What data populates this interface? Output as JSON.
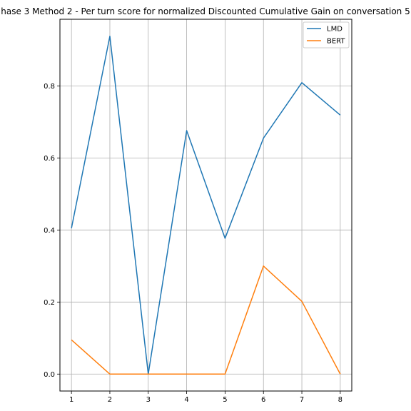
{
  "chart_data": {
    "type": "line",
    "title": "hase 3 Method 2 - Per turn score for normalized Discounted Cumulative Gain on conversation 5",
    "xlabel": "",
    "ylabel": "",
    "x": [
      1,
      2,
      3,
      4,
      5,
      6,
      7,
      8
    ],
    "xlim": [
      0.7,
      8.3
    ],
    "ylim": [
      -0.047,
      0.985
    ],
    "xticks": [
      "1",
      "2",
      "3",
      "4",
      "5",
      "6",
      "7",
      "8"
    ],
    "yticks": [
      "0.0",
      "0.2",
      "0.4",
      "0.6",
      "0.8"
    ],
    "ytick_values": [
      0.0,
      0.2,
      0.4,
      0.6,
      0.8
    ],
    "grid": true,
    "legend_position": "top-right",
    "series": [
      {
        "name": "LMD",
        "color": "#1f77b4",
        "values": [
          0.405,
          0.938,
          0.0,
          0.676,
          0.377,
          0.655,
          0.809,
          0.719
        ]
      },
      {
        "name": "BERT",
        "color": "#ff7f0e",
        "values": [
          0.095,
          0.0,
          0.0,
          0.0,
          0.0,
          0.3,
          0.202,
          0.0
        ]
      }
    ]
  }
}
